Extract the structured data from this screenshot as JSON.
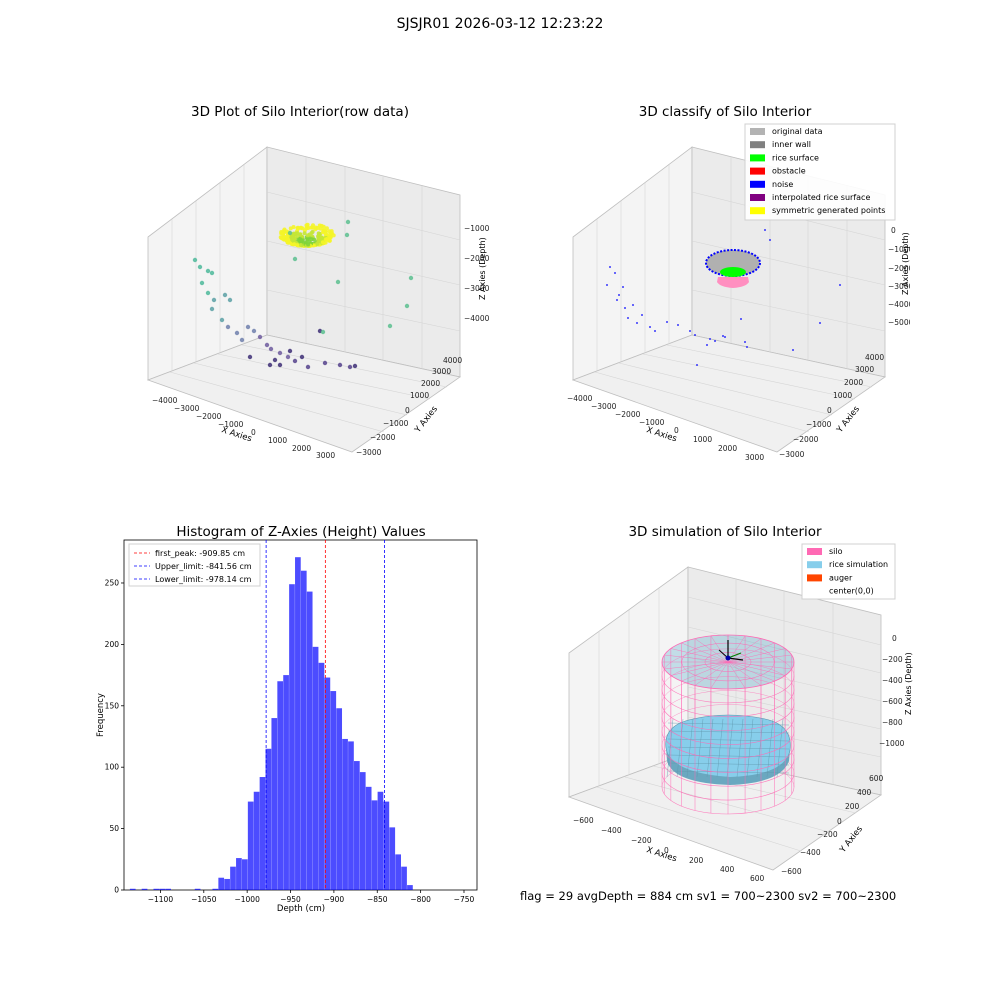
{
  "suptitle": "SJSJR01 2026-03-12 12:23:22",
  "footer": "flag = 29  avgDepth = 884 cm  sv1 = 700~2300  sv2 = 700~2300",
  "panels": {
    "raw": {
      "title": "3D Plot of Silo Interior(row data)",
      "xlabel": "X Axies",
      "ylabel": "Y Axies",
      "zlabel": "Z Axies (Depth)",
      "xticks": [
        "−4000",
        "−3000",
        "−2000",
        "−1000",
        "0",
        "1000",
        "2000",
        "3000"
      ],
      "yticks": [
        "−3000",
        "−2000",
        "−1000",
        "0",
        "1000",
        "2000",
        "3000",
        "4000"
      ],
      "zticks": [
        "−1000",
        "−2000",
        "−3000",
        "−4000"
      ]
    },
    "classify": {
      "title": "3D classify of Silo Interior",
      "xlabel": "X Axies",
      "ylabel": "Y Axies",
      "zlabel": "Z Axies (Depth)",
      "xticks": [
        "−4000",
        "−3000",
        "−2000",
        "−1000",
        "0",
        "1000",
        "2000",
        "3000"
      ],
      "yticks": [
        "−3000",
        "−2000",
        "−1000",
        "0",
        "1000",
        "2000",
        "3000",
        "4000"
      ],
      "zticks": [
        "0",
        "−1000",
        "−2000",
        "−3000",
        "−4000",
        "−5000"
      ],
      "legend": [
        {
          "label": "original data",
          "color": "#b3b3b3"
        },
        {
          "label": "inner wall",
          "color": "#808080"
        },
        {
          "label": "rice surface",
          "color": "#00ff00"
        },
        {
          "label": "obstacle",
          "color": "#ff0000"
        },
        {
          "label": "noise",
          "color": "#0000ff"
        },
        {
          "label": "interpolated rice surface",
          "color": "#800080"
        },
        {
          "label": "symmetric generated points",
          "color": "#ffff00"
        }
      ]
    },
    "simulation": {
      "title": "3D simulation of Silo Interior",
      "xlabel": "X Axies",
      "ylabel": "Y Axies",
      "zlabel": "Z Axies (Depth)",
      "xticks": [
        "−600",
        "−400",
        "−200",
        "0",
        "200",
        "400",
        "600"
      ],
      "yticks": [
        "−600",
        "−400",
        "−200",
        "0",
        "200",
        "400",
        "600"
      ],
      "zticks": [
        "0",
        "−200",
        "−400",
        "−600",
        "−800",
        "−1000"
      ],
      "legend": [
        {
          "label": "silo",
          "color": "#ff69b4"
        },
        {
          "label": "rice simulation",
          "color": "#87ceeb"
        },
        {
          "label": "auger",
          "color": "#ff4500"
        },
        {
          "label": "center(0,0)",
          "color": "#ffffff"
        }
      ]
    }
  },
  "chart_data": {
    "type": "bar",
    "title": "Histogram of Z-Axies (Height) Values",
    "xlabel": "Depth (cm)",
    "ylabel": "Frequency",
    "xlim": [
      -1142,
      -735
    ],
    "ylim": [
      0,
      285
    ],
    "xticks": [
      -1100,
      -1050,
      -1000,
      -950,
      -900,
      -850,
      -800,
      -750
    ],
    "yticks": [
      0,
      50,
      100,
      150,
      200,
      250
    ],
    "bar_color": "#0000ff",
    "bin_width": 6.8,
    "bin_edges_start": -1142,
    "values": [
      0,
      1,
      0,
      1,
      0,
      1,
      1,
      1,
      0,
      0,
      0,
      0,
      1,
      0,
      0,
      1,
      10,
      9,
      19,
      26,
      25,
      72,
      80,
      92,
      115,
      140,
      170,
      175,
      249,
      271,
      260,
      243,
      198,
      185,
      173,
      162,
      148,
      123,
      121,
      105,
      96,
      84,
      73,
      80,
      72,
      51,
      29,
      19,
      4,
      0
    ],
    "vlines": [
      {
        "x": -909.85,
        "color": "#ff0000",
        "label": "first_peak: -909.85 cm"
      },
      {
        "x": -841.56,
        "color": "#0000ff",
        "label": "Upper_limit: -841.56 cm"
      },
      {
        "x": -978.14,
        "color": "#0000ff",
        "label": "Lower_limit: -978.14 cm"
      }
    ],
    "legend_position": "upper-left"
  }
}
